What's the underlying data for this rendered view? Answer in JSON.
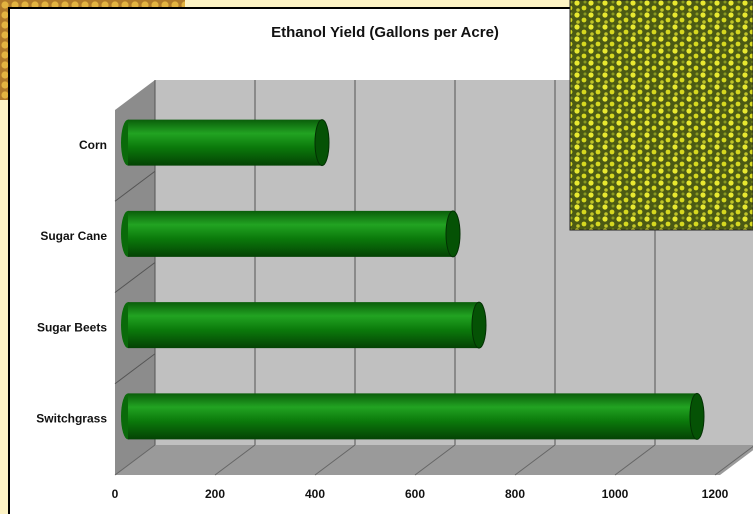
{
  "chart_data": {
    "type": "bar",
    "orientation": "horizontal",
    "title": "Ethanol Yield (Gallons per Acre)",
    "categories": [
      "Corn",
      "Sugar Cane",
      "Sugar Beets",
      "Switchgrass"
    ],
    "values": [
      400,
      662,
      714,
      1150
    ],
    "color": "#0b7a0b",
    "xlim": [
      0,
      1200
    ],
    "xticks": [
      0,
      200,
      400,
      600,
      800,
      1000,
      1200
    ],
    "grid": true
  }
}
